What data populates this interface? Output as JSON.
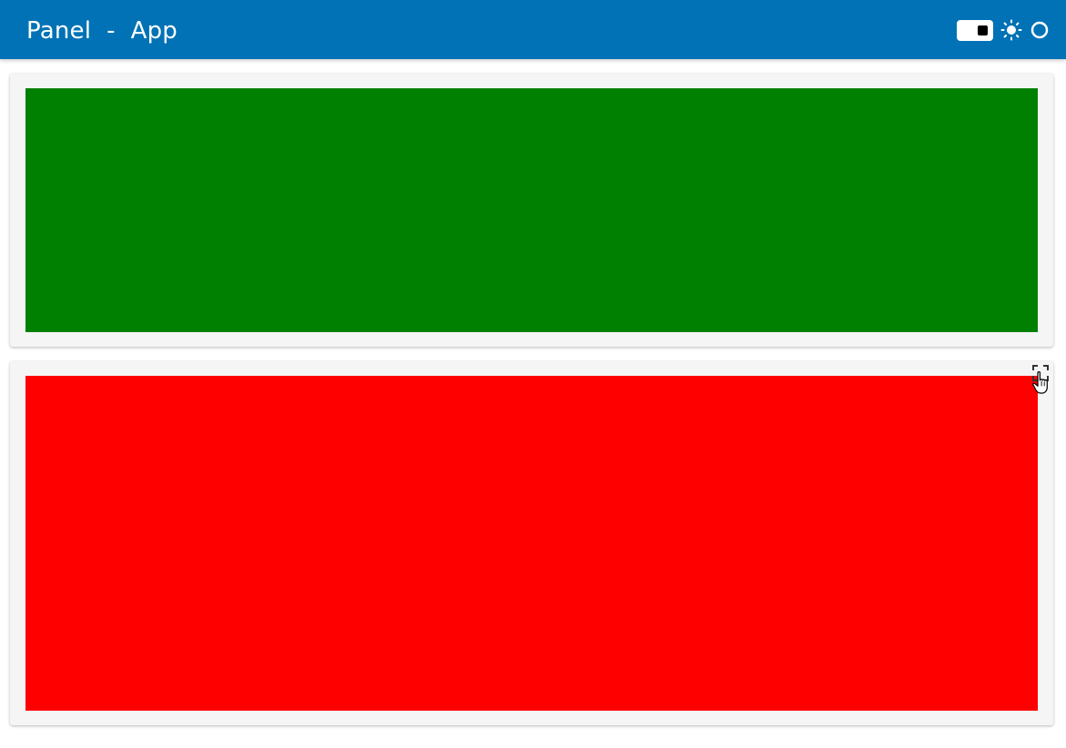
{
  "header": {
    "title": "Panel  -  App",
    "background_color": "#0072b5",
    "theme_toggle": {
      "state": "on",
      "icon": "toggle-switch-icon"
    },
    "theme_icon": "sun-icon",
    "status_icon": "circle-icon"
  },
  "main": {
    "cards": [
      {
        "panel_color": "#008000",
        "panel_name": "green-panel"
      },
      {
        "panel_color": "#ff0000",
        "panel_name": "red-panel",
        "hover_control": "fullscreen-icon"
      }
    ]
  },
  "cursor": {
    "icon": "hand-pointer-icon"
  }
}
